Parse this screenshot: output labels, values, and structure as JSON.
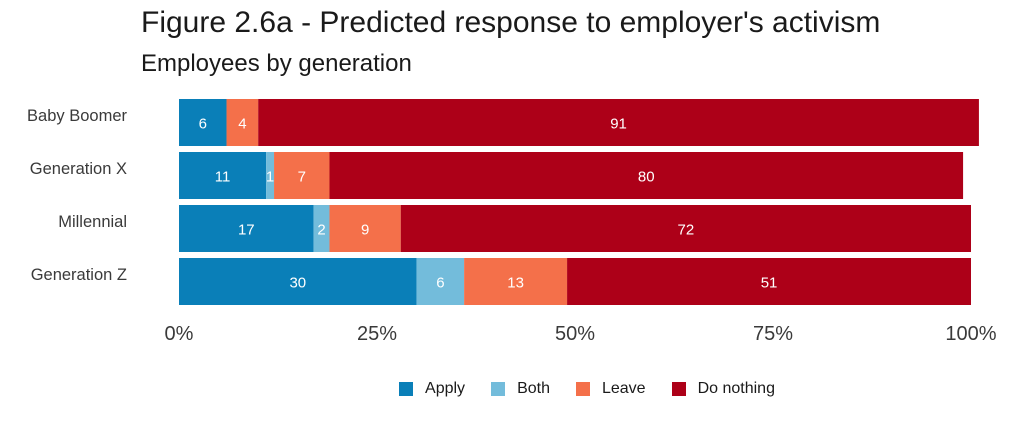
{
  "chart_data": {
    "type": "bar",
    "orientation": "horizontal",
    "stacked": true,
    "title": "Figure 2.6a - Predicted response to employer's activism",
    "subtitle": "Employees by generation",
    "xlabel": "",
    "ylabel": "",
    "xlim": [
      0,
      100
    ],
    "x_ticks": [
      "0%",
      "25%",
      "50%",
      "75%",
      "100%"
    ],
    "categories": [
      "Baby Boomer",
      "Generation X",
      "Millennial",
      "Generation Z"
    ],
    "series": [
      {
        "name": "Apply",
        "color": "#0a7fb8",
        "values": [
          6,
          11,
          17,
          30
        ],
        "labels": [
          "6",
          "11",
          "17",
          "30"
        ]
      },
      {
        "name": "Both",
        "color": "#73bcdb",
        "values": [
          0,
          1,
          2,
          6
        ],
        "labels": [
          "",
          "1",
          "2",
          "6"
        ]
      },
      {
        "name": "Leave",
        "color": "#f4704a",
        "values": [
          4,
          7,
          9,
          13
        ],
        "labels": [
          "4",
          "7",
          "9",
          "13"
        ]
      },
      {
        "name": "Do nothing",
        "color": "#ad0018",
        "values": [
          91,
          80,
          72,
          51
        ],
        "labels": [
          "91",
          "80",
          "72",
          "51"
        ]
      }
    ],
    "legend_position": "bottom",
    "grid": false
  }
}
